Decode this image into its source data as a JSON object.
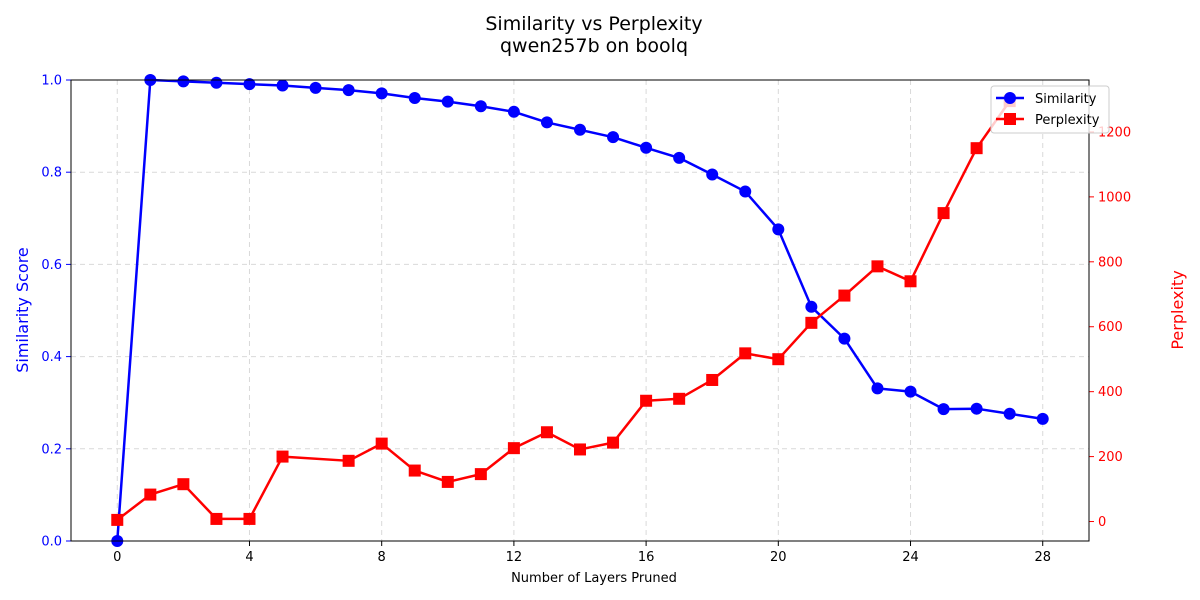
{
  "chart_data": {
    "type": "line",
    "title": "Similarity vs Perplexity",
    "subtitle": "qwen257b on boolq",
    "xlabel": "Number of Layers Pruned",
    "ylabel_left": "Similarity Score",
    "ylabel_right": "Perplexity",
    "xlim": [
      -1.4,
      29.4
    ],
    "xticks": [
      0,
      4,
      8,
      12,
      16,
      20,
      24,
      28
    ],
    "ylim_left": [
      0,
      1.0
    ],
    "yticks_left": [
      "0.0",
      "0.2",
      "0.4",
      "0.6",
      "0.8",
      "1.0"
    ],
    "ylim_right": [
      -60,
      1360
    ],
    "yticks_right": [
      "0",
      "200",
      "400",
      "600",
      "800",
      "1000",
      "1200"
    ],
    "grid": true,
    "legend_position": "top-right",
    "colors": {
      "similarity": "#0000ff",
      "perplexity": "#ff0000"
    },
    "series": [
      {
        "name": "Similarity",
        "axis": "left",
        "marker": "circle",
        "x": [
          0,
          1,
          2,
          3,
          4,
          5,
          6,
          7,
          8,
          9,
          10,
          11,
          12,
          13,
          14,
          15,
          16,
          17,
          18,
          19,
          20,
          21,
          22,
          23,
          24,
          25,
          26,
          27,
          28
        ],
        "values": [
          0.0,
          1.0,
          0.997,
          0.994,
          0.991,
          0.988,
          0.983,
          0.978,
          0.971,
          0.961,
          0.953,
          0.943,
          0.931,
          0.908,
          0.892,
          0.876,
          0.853,
          0.831,
          0.795,
          0.758,
          0.676,
          0.508,
          0.439,
          0.331,
          0.324,
          0.286,
          0.287,
          0.276,
          0.265
        ]
      },
      {
        "name": "Perplexity",
        "axis": "right",
        "marker": "square",
        "x": [
          0,
          1,
          2,
          3,
          4,
          5,
          7,
          8,
          9,
          10,
          11,
          12,
          13,
          14,
          15,
          16,
          17,
          18,
          19,
          20,
          21,
          22,
          23,
          24,
          25,
          26,
          27
        ],
        "values": [
          5,
          83,
          115,
          8,
          8,
          200,
          187,
          240,
          157,
          122,
          146,
          226,
          275,
          222,
          243,
          372,
          378,
          436,
          518,
          500,
          612,
          696,
          786,
          740,
          950,
          1150,
          1295
        ]
      }
    ]
  }
}
